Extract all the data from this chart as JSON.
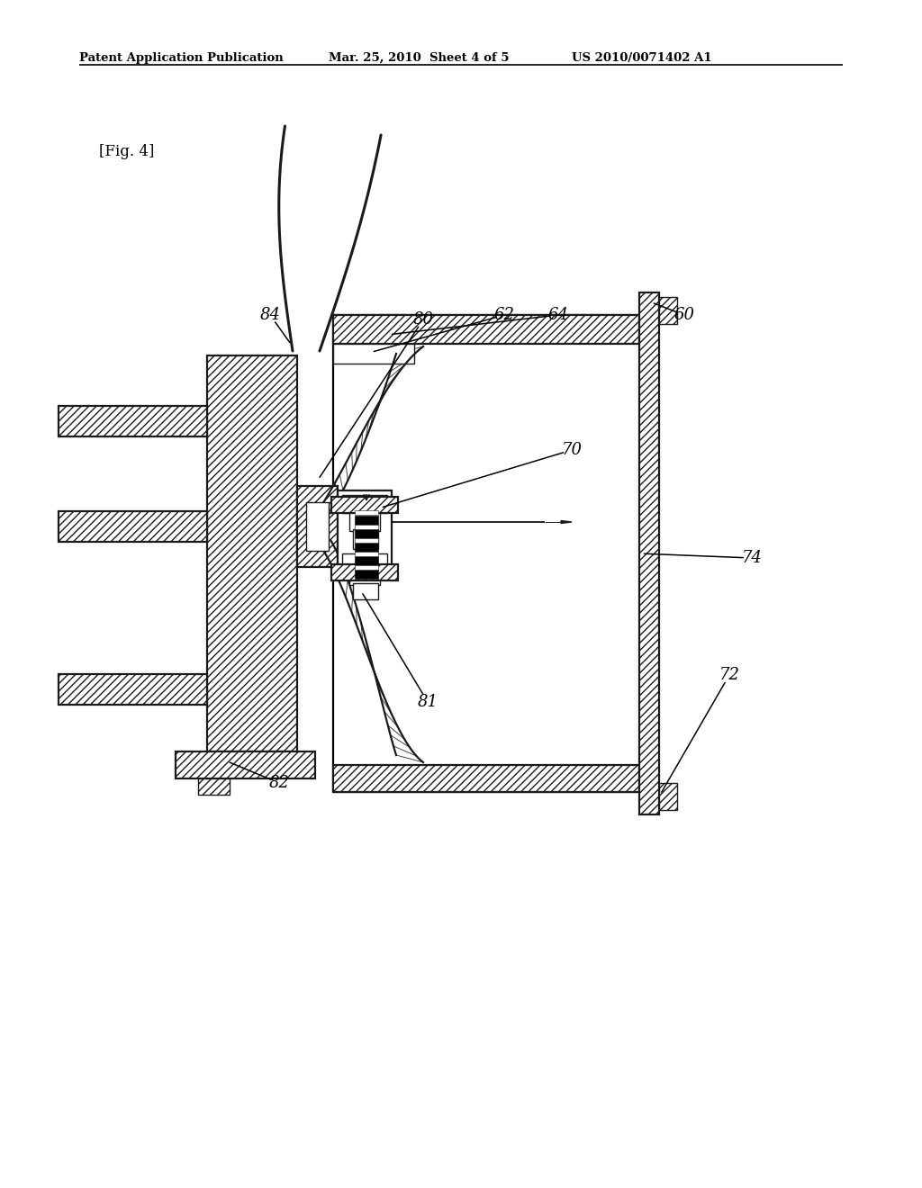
{
  "bg_color": "#ffffff",
  "line_color": "#1a1a1a",
  "header_left": "Patent Application Publication",
  "header_mid": "Mar. 25, 2010  Sheet 4 of 5",
  "header_right": "US 2010/0071402 A1",
  "fig_label": "[Fig. 4]",
  "lw_main": 1.6,
  "lw_thin": 1.0,
  "lw_thick": 2.2
}
